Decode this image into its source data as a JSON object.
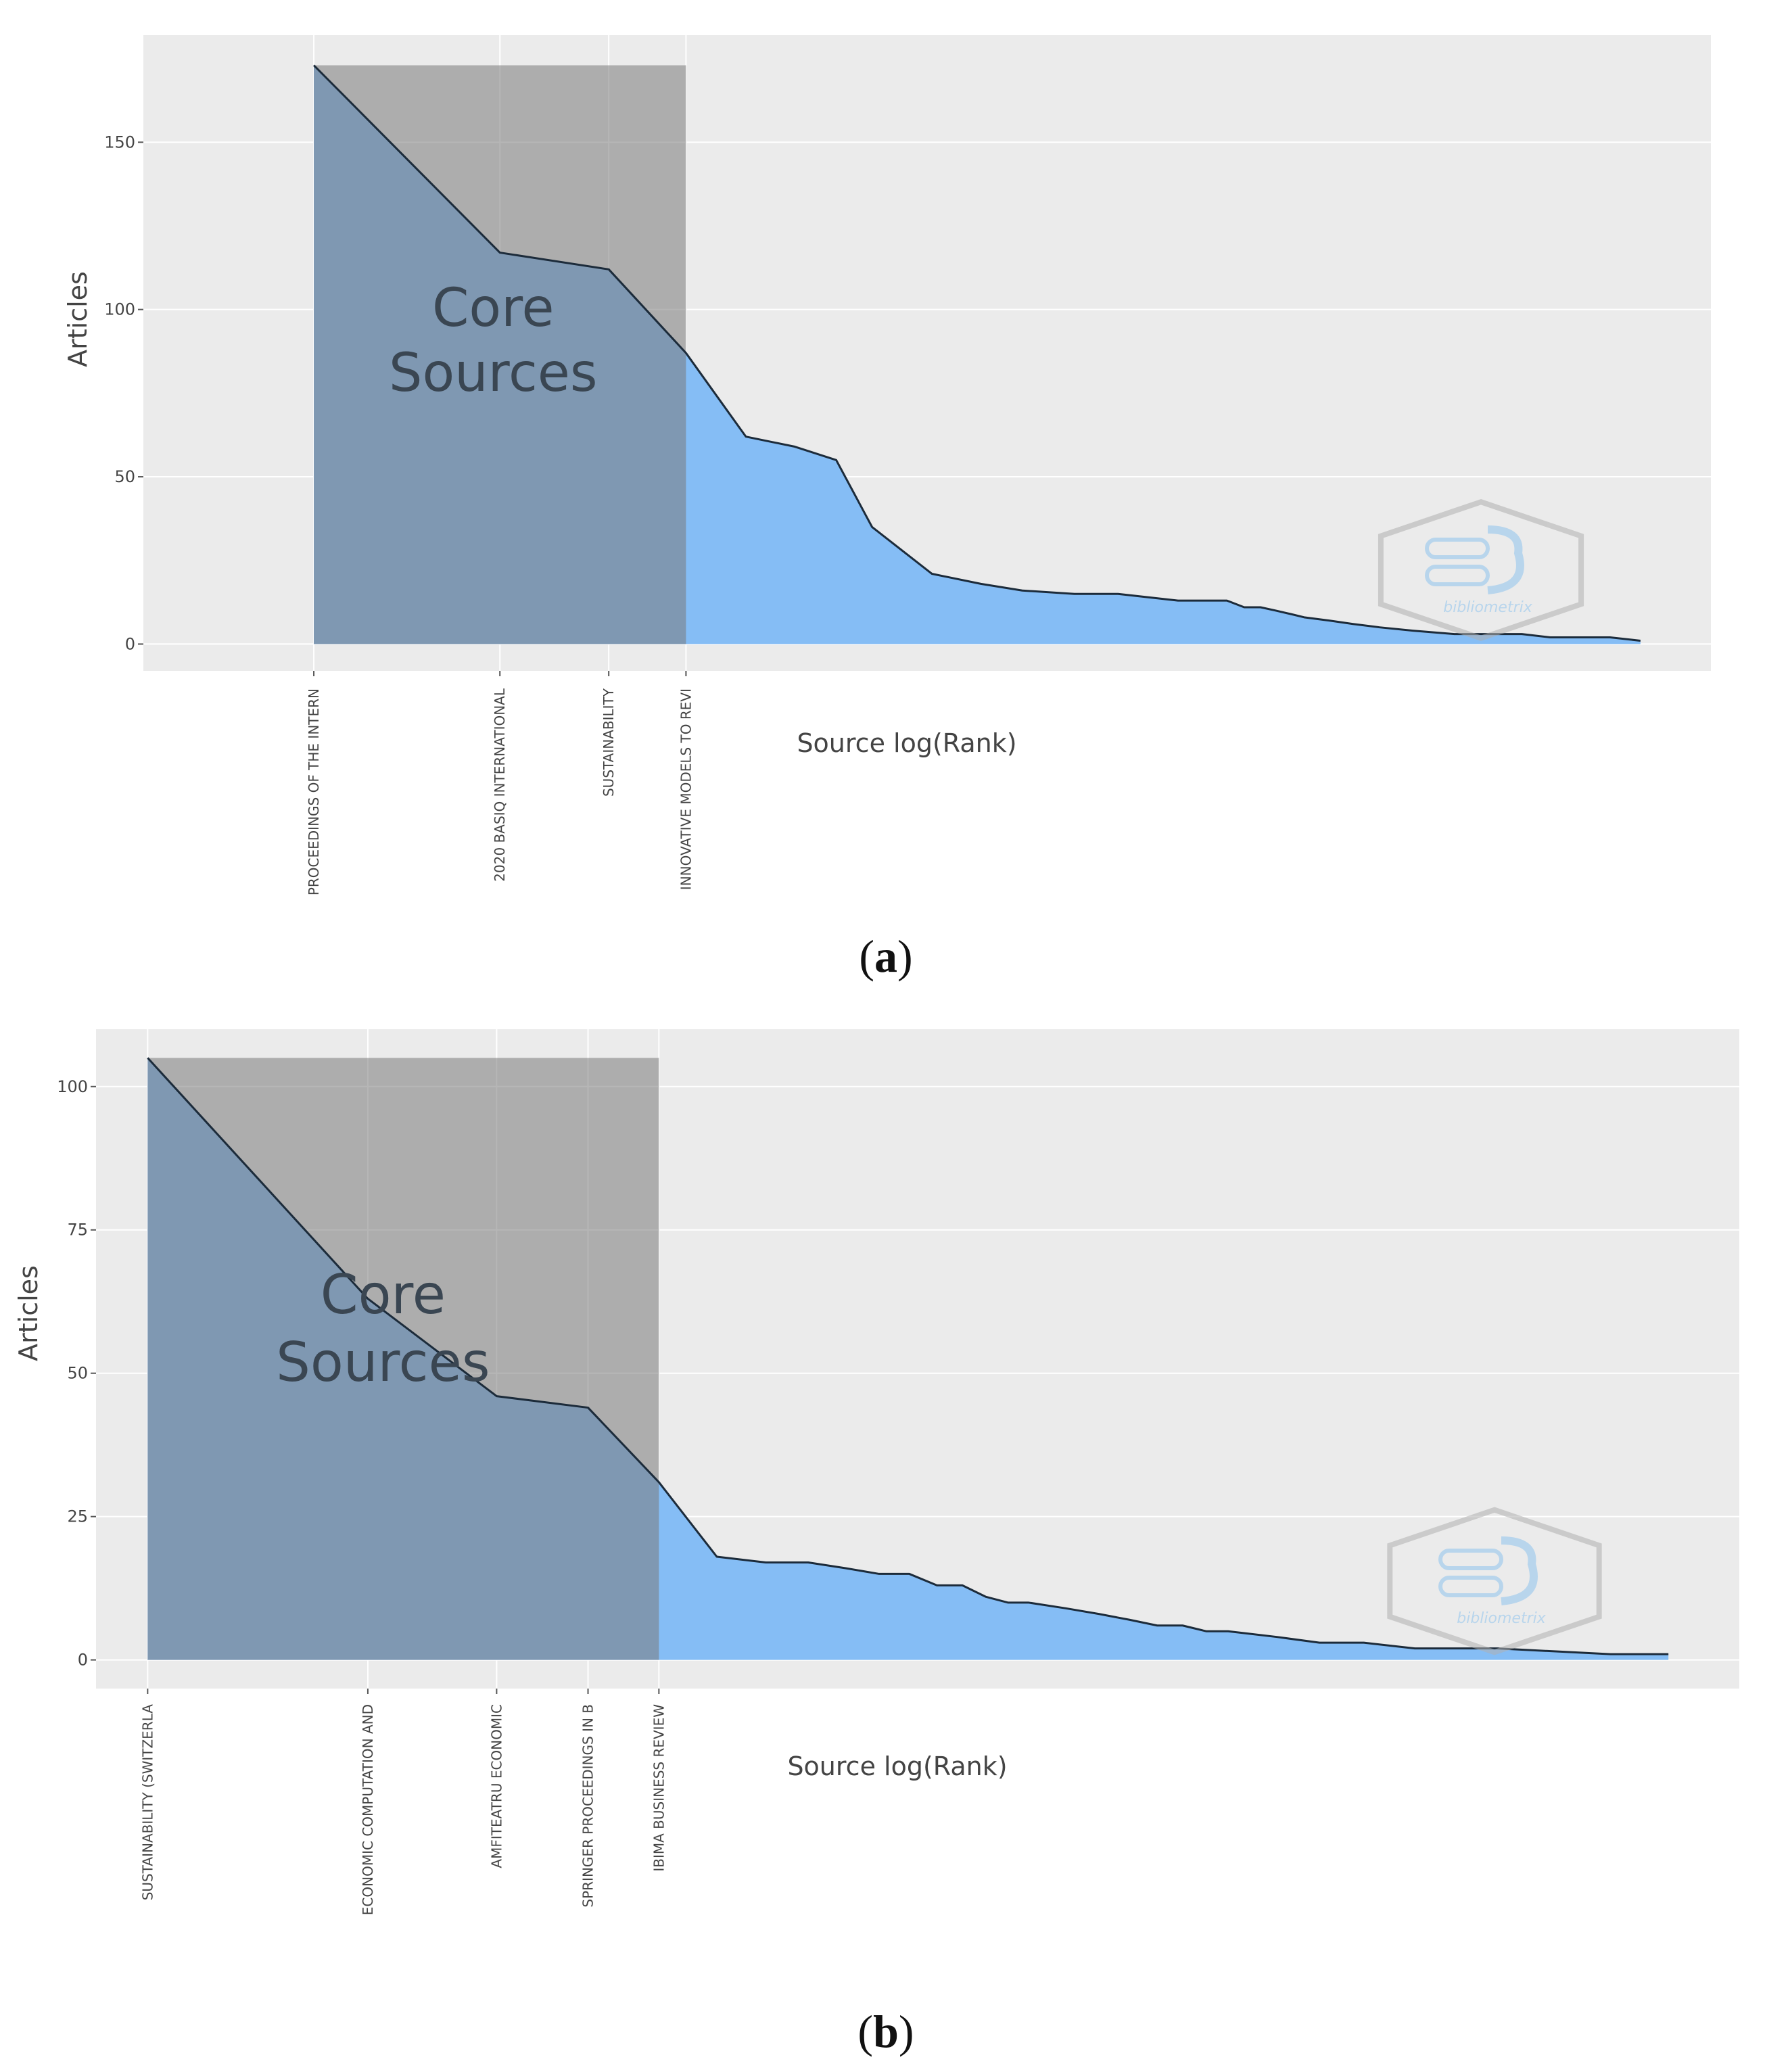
{
  "panels": [
    {
      "label_open": "(",
      "label_letter": "a",
      "label_close": ")"
    },
    {
      "label_open": "(",
      "label_letter": "b",
      "label_close": ")"
    }
  ],
  "chart_data": [
    {
      "type": "area",
      "title": "",
      "xlabel": "Source log(Rank)",
      "ylabel": "Articles",
      "ylim": [
        -8,
        182
      ],
      "yticks": [
        0,
        50,
        100,
        150
      ],
      "x_scale": "log",
      "xlim": [
        0.53,
        182
      ],
      "grid": true,
      "legend": "none",
      "core_label": "Core Sources",
      "core_label_lines": [
        "Core",
        "Sources"
      ],
      "core_sources": [
        {
          "rank": 1,
          "name": "PROCEEDINGS OF THE INTERN",
          "articles": 173
        },
        {
          "rank": 2,
          "name": "2020 BASIQ INTERNATIONAL",
          "articles": 117
        },
        {
          "rank": 3,
          "name": "SUSTAINABILITY",
          "articles": 112
        },
        {
          "rank": 4,
          "name": "INNOVATIVE MODELS TO REVI",
          "articles": 87
        }
      ],
      "rank": [
        1,
        2,
        3,
        4,
        5,
        6,
        7,
        8,
        10,
        12,
        14,
        17,
        20,
        25,
        30,
        32,
        34,
        36,
        38,
        40,
        44,
        48,
        53,
        60,
        70,
        90,
        100,
        125,
        140
      ],
      "articles": [
        173,
        117,
        112,
        87,
        62,
        59,
        55,
        35,
        21,
        18,
        16,
        15,
        15,
        13,
        13,
        11,
        11,
        10,
        9,
        8,
        7,
        6,
        5,
        4,
        3,
        3,
        2,
        2,
        1
      ],
      "watermark": "bibliometrix",
      "colors": {
        "area": "#85bdf5",
        "core_box": "#7a7a7a",
        "line": "#1c2b3a",
        "plot_bg": "#ebebeb"
      }
    },
    {
      "type": "area",
      "title": "",
      "xlabel": "Source log(Rank)",
      "ylabel": "Articles",
      "ylim": [
        -5,
        110
      ],
      "yticks": [
        0,
        25,
        50,
        75,
        100
      ],
      "x_scale": "log",
      "xlim": [
        0.85,
        150
      ],
      "grid": true,
      "legend": "none",
      "core_label": "Core Sources",
      "core_label_lines": [
        "Core",
        "Sources"
      ],
      "core_sources": [
        {
          "rank": 1,
          "name": "SUSTAINABILITY (SWITZERLA",
          "articles": 105
        },
        {
          "rank": 2,
          "name": "ECONOMIC COMPUTATION AND",
          "articles": 63
        },
        {
          "rank": 3,
          "name": "AMFITEATRU ECONOMIC",
          "articles": 46
        },
        {
          "rank": 4,
          "name": "SPRINGER PROCEEDINGS IN B",
          "articles": 44
        },
        {
          "rank": 5,
          "name": "IBIMA BUSINESS REVIEW",
          "articles": 31
        }
      ],
      "rank": [
        1,
        2,
        3,
        4,
        5,
        6,
        7,
        8,
        9,
        10,
        11,
        12,
        13,
        14,
        15,
        16,
        18,
        20,
        22,
        24,
        26,
        28,
        30,
        35,
        40,
        46,
        54,
        70,
        100,
        120
      ],
      "articles": [
        105,
        63,
        46,
        44,
        31,
        18,
        17,
        17,
        16,
        15,
        15,
        13,
        13,
        11,
        10,
        10,
        9,
        8,
        7,
        6,
        6,
        5,
        5,
        4,
        3,
        3,
        2,
        2,
        1,
        1
      ],
      "watermark": "bibliometrix",
      "colors": {
        "area": "#85bdf5",
        "core_box": "#7a7a7a",
        "line": "#1c2b3a",
        "plot_bg": "#ebebeb"
      }
    }
  ]
}
